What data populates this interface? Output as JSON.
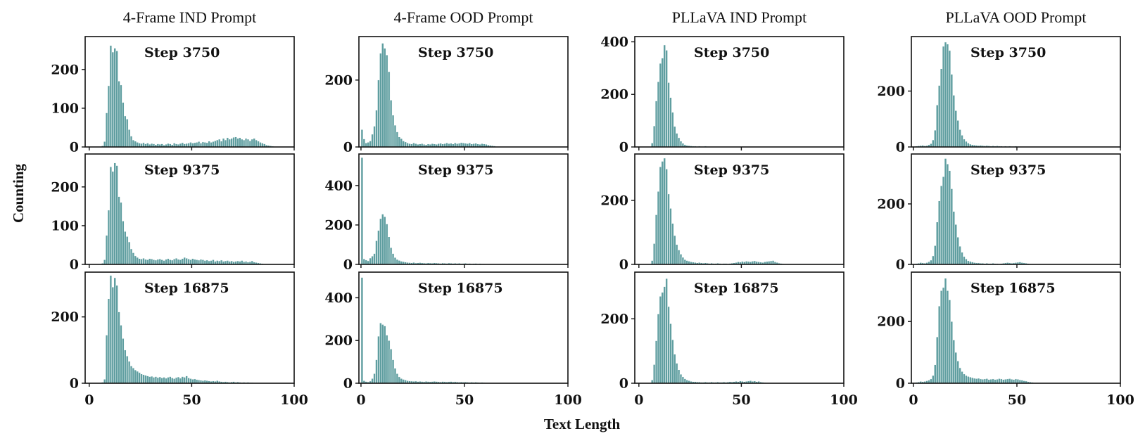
{
  "figure": {
    "xlabel": "Text Length",
    "ylabel": "Counting",
    "bar_color": "#5f9ea0"
  },
  "chart_data": [
    {
      "type": "bar",
      "title": "4-Frame IND Prompt",
      "subtitle": "Step 3750",
      "column": 0,
      "row": 0,
      "xlim": [
        -2,
        100
      ],
      "ylim": [
        0,
        285
      ],
      "xticks": [
        0,
        50,
        100
      ],
      "yticks": [
        0,
        100,
        200
      ],
      "x_start": 6,
      "values": [
        3,
        14,
        88,
        158,
        262,
        245,
        255,
        248,
        170,
        160,
        115,
        80,
        72,
        45,
        28,
        18,
        15,
        12,
        10,
        9,
        11,
        8,
        10,
        7,
        9,
        8,
        6,
        8,
        7,
        8,
        5,
        7,
        9,
        8,
        6,
        10,
        8,
        7,
        9,
        11,
        8,
        9,
        10,
        12,
        10,
        11,
        12,
        14,
        10,
        13,
        12,
        11,
        15,
        12,
        14,
        16,
        18,
        20,
        15,
        22,
        18,
        24,
        20,
        22,
        25,
        26,
        22,
        24,
        20,
        18,
        22,
        20,
        16,
        20,
        22,
        18,
        15,
        12,
        10,
        8,
        5,
        4,
        3,
        2
      ]
    },
    {
      "type": "bar",
      "title": "4-Frame IND Prompt",
      "subtitle": "Step 9375",
      "column": 0,
      "row": 1,
      "xlim": [
        -2,
        100
      ],
      "ylim": [
        0,
        285
      ],
      "xticks": [
        0,
        50,
        100
      ],
      "yticks": [
        0,
        100,
        200
      ],
      "x_start": 6,
      "values": [
        3,
        12,
        75,
        140,
        252,
        240,
        262,
        255,
        175,
        160,
        112,
        85,
        72,
        58,
        40,
        30,
        22,
        18,
        15,
        14,
        16,
        13,
        12,
        15,
        14,
        12,
        11,
        13,
        14,
        12,
        10,
        13,
        15,
        12,
        11,
        14,
        16,
        13,
        12,
        15,
        18,
        16,
        14,
        12,
        15,
        13,
        12,
        11,
        13,
        12,
        10,
        11,
        9,
        10,
        12,
        8,
        10,
        9,
        11,
        8,
        9,
        10,
        8,
        9,
        7,
        8,
        9,
        8,
        10,
        7,
        8,
        6,
        7,
        9,
        6,
        5,
        4,
        3,
        2
      ]
    },
    {
      "type": "bar",
      "title": "4-Frame IND Prompt",
      "subtitle": "Step 16875",
      "column": 0,
      "row": 2,
      "xlim": [
        -2,
        100
      ],
      "ylim": [
        0,
        335
      ],
      "xticks": [
        0,
        50,
        100
      ],
      "yticks": [
        0,
        200
      ],
      "x_start": 6,
      "values": [
        3,
        12,
        145,
        255,
        325,
        290,
        318,
        295,
        215,
        175,
        135,
        100,
        82,
        66,
        52,
        46,
        40,
        36,
        32,
        28,
        26,
        24,
        22,
        20,
        21,
        18,
        20,
        17,
        19,
        16,
        18,
        15,
        18,
        20,
        16,
        14,
        17,
        19,
        15,
        20,
        18,
        22,
        16,
        14,
        12,
        13,
        11,
        10,
        9,
        8,
        9,
        8,
        7,
        6,
        7,
        6,
        8,
        6,
        5,
        4,
        5,
        4,
        3,
        4,
        5,
        3,
        4,
        3,
        2,
        3,
        2,
        3,
        2,
        2,
        1,
        1
      ]
    },
    {
      "type": "bar",
      "title": "4-Frame OOD Prompt",
      "subtitle": "Step 3750",
      "column": 1,
      "row": 0,
      "xlim": [
        -1,
        100
      ],
      "ylim": [
        0,
        330
      ],
      "xticks": [
        0,
        50,
        100
      ],
      "yticks": [
        0,
        200
      ],
      "x_start": 0,
      "values": [
        52,
        24,
        12,
        14,
        18,
        38,
        62,
        110,
        200,
        280,
        310,
        295,
        275,
        225,
        140,
        95,
        65,
        45,
        30,
        25,
        18,
        15,
        12,
        10,
        9,
        12,
        10,
        8,
        9,
        10,
        8,
        7,
        9,
        8,
        10,
        9,
        8,
        10,
        11,
        9,
        10,
        12,
        10,
        11,
        9,
        12,
        10,
        11,
        13,
        12,
        11,
        10,
        12,
        9,
        10,
        11,
        9,
        8,
        10,
        9,
        8,
        6,
        5,
        4,
        3
      ]
    },
    {
      "type": "bar",
      "title": "4-Frame OOD Prompt",
      "subtitle": "Step 9375",
      "column": 1,
      "row": 1,
      "xlim": [
        -1,
        100
      ],
      "ylim": [
        0,
        560
      ],
      "xticks": [
        0,
        50,
        100
      ],
      "yticks": [
        0,
        200,
        400
      ],
      "x_start": 0,
      "values": [
        542,
        28,
        22,
        18,
        32,
        42,
        55,
        120,
        172,
        232,
        255,
        242,
        205,
        140,
        85,
        55,
        35,
        25,
        20,
        16,
        14,
        12,
        10,
        9,
        8,
        10,
        7,
        8,
        9,
        8,
        7,
        6,
        8,
        7,
        6,
        8,
        7,
        6,
        5,
        7,
        6,
        5,
        7,
        6,
        5,
        6,
        5,
        6,
        4,
        5,
        6,
        4,
        5,
        3,
        4,
        5,
        3,
        4,
        3,
        3,
        2
      ]
    },
    {
      "type": "bar",
      "title": "4-Frame OOD Prompt",
      "subtitle": "Step 16875",
      "column": 1,
      "row": 2,
      "xlim": [
        -1,
        100
      ],
      "ylim": [
        0,
        520
      ],
      "xticks": [
        0,
        50,
        100
      ],
      "yticks": [
        0,
        200,
        400
      ],
      "x_start": 0,
      "values": [
        495,
        12,
        8,
        6,
        10,
        22,
        45,
        110,
        220,
        282,
        275,
        268,
        225,
        200,
        160,
        110,
        70,
        45,
        30,
        22,
        18,
        15,
        12,
        11,
        10,
        9,
        10,
        8,
        9,
        8,
        7,
        9,
        8,
        7,
        8,
        9,
        8,
        7,
        6,
        8,
        7,
        6,
        7,
        8,
        6,
        7,
        6,
        5,
        6,
        5,
        6,
        5,
        4,
        5,
        4,
        5,
        4,
        3,
        4,
        3,
        2
      ]
    },
    {
      "type": "bar",
      "title": "PLLaVA IND Prompt",
      "subtitle": "Step 3750",
      "column": 2,
      "row": 0,
      "xlim": [
        -2,
        100
      ],
      "ylim": [
        0,
        420
      ],
      "xticks": [
        0,
        50,
        100
      ],
      "yticks": [
        0,
        200,
        400
      ],
      "x_start": 6,
      "values": [
        15,
        80,
        175,
        248,
        318,
        338,
        388,
        368,
        245,
        188,
        132,
        78,
        52,
        35,
        22,
        14,
        9,
        6,
        5,
        4,
        3,
        3,
        2,
        3,
        2,
        2,
        3,
        2,
        1,
        2,
        1,
        2,
        1,
        1,
        2,
        1,
        1,
        1,
        2,
        1,
        1,
        1,
        1,
        1,
        1,
        1,
        1,
        1,
        1,
        1
      ]
    },
    {
      "type": "bar",
      "title": "PLLaVA IND Prompt",
      "subtitle": "Step 9375",
      "column": 2,
      "row": 1,
      "xlim": [
        -2,
        100
      ],
      "ylim": [
        0,
        345
      ],
      "xticks": [
        0,
        50,
        100
      ],
      "yticks": [
        0,
        200
      ],
      "x_start": 6,
      "values": [
        12,
        65,
        155,
        228,
        305,
        322,
        332,
        298,
        220,
        175,
        128,
        90,
        62,
        45,
        32,
        22,
        15,
        12,
        10,
        8,
        7,
        6,
        5,
        6,
        5,
        4,
        5,
        4,
        3,
        4,
        3,
        3,
        4,
        3,
        2,
        3,
        3,
        2,
        3,
        4,
        5,
        6,
        8,
        7,
        9,
        8,
        10,
        9,
        8,
        10,
        11,
        9,
        8,
        7,
        6,
        8,
        9,
        10,
        11,
        12,
        8,
        6,
        4,
        3,
        2
      ]
    },
    {
      "type": "bar",
      "title": "PLLaVA IND Prompt",
      "subtitle": "Step 16875",
      "column": 2,
      "row": 2,
      "xlim": [
        -2,
        100
      ],
      "ylim": [
        0,
        345
      ],
      "xticks": [
        0,
        50,
        100
      ],
      "yticks": [
        0,
        200
      ],
      "x_start": 6,
      "values": [
        10,
        58,
        132,
        215,
        270,
        282,
        300,
        325,
        238,
        185,
        135,
        90,
        62,
        42,
        28,
        20,
        14,
        10,
        8,
        6,
        5,
        5,
        4,
        4,
        3,
        3,
        4,
        3,
        3,
        4,
        3,
        3,
        4,
        3,
        3,
        4,
        3,
        4,
        5,
        4,
        5,
        6,
        5,
        7,
        6,
        5,
        6,
        7,
        8,
        6,
        7,
        5,
        6,
        4,
        3,
        2
      ]
    },
    {
      "type": "bar",
      "title": "PLLaVA OOD Prompt",
      "subtitle": "Step 3750",
      "column": 3,
      "row": 0,
      "xlim": [
        -1,
        100
      ],
      "ylim": [
        0,
        395
      ],
      "xticks": [
        0,
        50,
        100
      ],
      "yticks": [
        0,
        200
      ],
      "x_start": 0,
      "values": [
        2,
        3,
        4,
        5,
        6,
        4,
        5,
        8,
        12,
        25,
        60,
        150,
        220,
        280,
        360,
        375,
        368,
        345,
        260,
        185,
        130,
        95,
        62,
        42,
        28,
        20,
        14,
        10,
        8,
        7,
        6,
        5,
        6,
        5,
        4,
        5,
        4,
        3,
        4,
        3,
        4,
        3,
        3,
        2,
        3,
        2,
        3,
        2,
        2,
        3,
        2,
        2,
        1,
        2,
        1,
        1,
        1,
        1,
        1
      ]
    },
    {
      "type": "bar",
      "title": "PLLaVA OOD Prompt",
      "subtitle": "Step 9375",
      "column": 3,
      "row": 1,
      "xlim": [
        -1,
        100
      ],
      "ylim": [
        0,
        365
      ],
      "xticks": [
        0,
        50,
        100
      ],
      "yticks": [
        0,
        200
      ],
      "x_start": 0,
      "values": [
        2,
        3,
        4,
        6,
        5,
        4,
        6,
        9,
        14,
        28,
        62,
        140,
        210,
        260,
        290,
        350,
        332,
        310,
        250,
        175,
        132,
        90,
        60,
        40,
        26,
        18,
        12,
        10,
        8,
        6,
        5,
        5,
        4,
        4,
        3,
        4,
        3,
        3,
        4,
        3,
        3,
        2,
        3,
        4,
        5,
        6,
        5,
        4,
        5,
        6,
        7,
        8,
        6,
        5,
        4,
        3,
        2,
        2,
        1
      ]
    },
    {
      "type": "bar",
      "title": "PLLaVA OOD Prompt",
      "subtitle": "Step 16875",
      "column": 3,
      "row": 2,
      "xlim": [
        -1,
        100
      ],
      "ylim": [
        0,
        360
      ],
      "xticks": [
        0,
        50,
        100
      ],
      "yticks": [
        0,
        200
      ],
      "x_start": 0,
      "values": [
        2,
        3,
        4,
        6,
        5,
        6,
        8,
        10,
        14,
        25,
        60,
        150,
        250,
        300,
        310,
        340,
        300,
        270,
        200,
        140,
        100,
        72,
        50,
        38,
        30,
        25,
        22,
        20,
        18,
        16,
        15,
        16,
        14,
        13,
        14,
        15,
        12,
        13,
        14,
        12,
        13,
        15,
        14,
        12,
        13,
        14,
        15,
        13,
        12,
        14,
        13,
        11,
        10,
        8,
        7,
        5,
        4,
        3
      ]
    }
  ]
}
